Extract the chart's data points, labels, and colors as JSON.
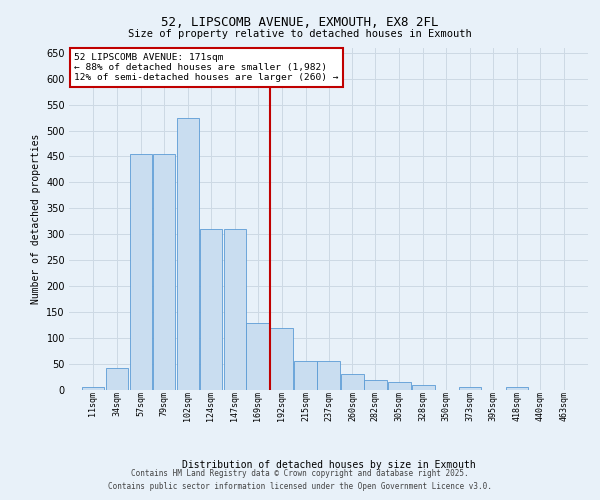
{
  "title1": "52, LIPSCOMB AVENUE, EXMOUTH, EX8 2FL",
  "title2": "Size of property relative to detached houses in Exmouth",
  "xlabel": "Distribution of detached houses by size in Exmouth",
  "ylabel": "Number of detached properties",
  "footer1": "Contains HM Land Registry data © Crown copyright and database right 2025.",
  "footer2": "Contains public sector information licensed under the Open Government Licence v3.0.",
  "ann_line1": "52 LIPSCOMB AVENUE: 171sqm",
  "ann_line2": "← 88% of detached houses are smaller (1,982)",
  "ann_line3": "12% of semi-detached houses are larger (260) →",
  "bin_labels": [
    "11sqm",
    "34sqm",
    "57sqm",
    "79sqm",
    "102sqm",
    "124sqm",
    "147sqm",
    "169sqm",
    "192sqm",
    "215sqm",
    "237sqm",
    "260sqm",
    "282sqm",
    "305sqm",
    "328sqm",
    "350sqm",
    "373sqm",
    "395sqm",
    "418sqm",
    "440sqm",
    "463sqm"
  ],
  "bin_starts": [
    11,
    34,
    57,
    79,
    102,
    124,
    147,
    169,
    192,
    215,
    237,
    260,
    282,
    305,
    328,
    350,
    373,
    395,
    418,
    440,
    463
  ],
  "bin_width": 23,
  "bar_heights": [
    5,
    42,
    455,
    455,
    525,
    310,
    310,
    130,
    120,
    55,
    55,
    30,
    20,
    15,
    10,
    0,
    5,
    0,
    5,
    0,
    0
  ],
  "bar_fill": "#c9ddf0",
  "bar_edge": "#5b9bd5",
  "vline_color": "#c00000",
  "vline_bin_idx": 7,
  "ann_box_edge": "#c00000",
  "grid_color": "#cdd9e4",
  "bg_color": "#e8f1f9",
  "ylim_max": 660,
  "yticks": [
    0,
    50,
    100,
    150,
    200,
    250,
    300,
    350,
    400,
    450,
    500,
    550,
    600,
    650
  ]
}
